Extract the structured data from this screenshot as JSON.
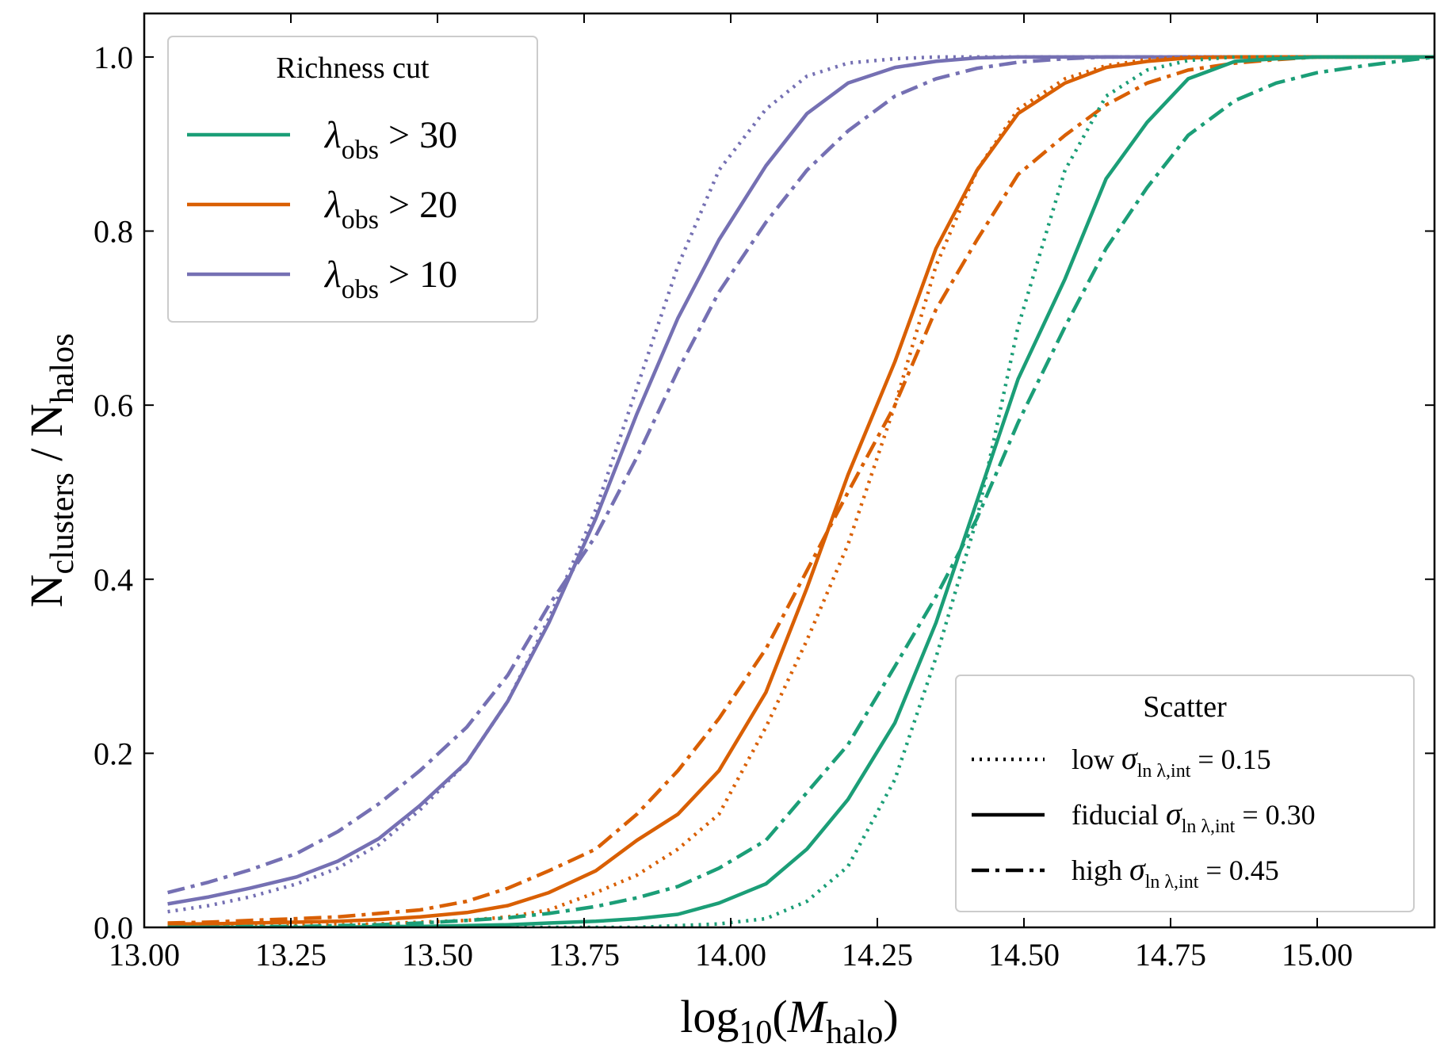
{
  "chart_data": {
    "type": "line",
    "xlabel": "log10(Mhalo)",
    "ylabel": "Nclusters / Nhalos",
    "xlim": [
      13.0,
      15.2
    ],
    "ylim": [
      0.0,
      1.05
    ],
    "x_ticks": [
      "13.00",
      "13.25",
      "13.50",
      "13.75",
      "14.00",
      "14.25",
      "14.50",
      "14.75",
      "15.00"
    ],
    "y_ticks": [
      "0.0",
      "0.2",
      "0.4",
      "0.6",
      "0.8",
      "1.0"
    ],
    "grid": false,
    "legends": {
      "richness": {
        "title": "Richness cut",
        "placement": "top-left",
        "entries": [
          {
            "key": "cut30",
            "base": "λ",
            "sub": "obs",
            "rest": " > 30",
            "color": "#1b9e77"
          },
          {
            "key": "cut20",
            "base": "λ",
            "sub": "obs",
            "rest": " > 20",
            "color": "#d95f02"
          },
          {
            "key": "cut10",
            "base": "λ",
            "sub": "obs",
            "rest": " > 10",
            "color": "#7570b3"
          }
        ]
      },
      "scatter": {
        "title": "Scatter",
        "placement": "bottom-right",
        "entries": [
          {
            "key": "low",
            "prefix": "low ",
            "base": "σ",
            "sub": "ln λ,int",
            "rest": " = 0.15",
            "dash": "dotted"
          },
          {
            "key": "fiducial",
            "prefix": "fiducial ",
            "base": "σ",
            "sub": "ln λ,int",
            "rest": " = 0.30",
            "dash": "solid"
          },
          {
            "key": "high",
            "prefix": "high ",
            "base": "σ",
            "sub": "ln λ,int",
            "rest": " = 0.45",
            "dash": "dashdot"
          }
        ]
      }
    },
    "x": [
      13.04,
      13.11,
      13.18,
      13.26,
      13.33,
      13.4,
      13.47,
      13.55,
      13.62,
      13.69,
      13.77,
      13.84,
      13.91,
      13.98,
      14.06,
      14.13,
      14.2,
      14.28,
      14.35,
      14.42,
      14.49,
      14.57,
      14.64,
      14.71,
      14.78,
      14.86,
      14.93,
      15.0,
      15.08,
      15.15,
      15.2
    ],
    "series": [
      {
        "key": "cut10-low",
        "color": "#7570b3",
        "dash": "dotted",
        "values": [
          0.018,
          0.025,
          0.035,
          0.05,
          0.068,
          0.095,
          0.135,
          0.19,
          0.26,
          0.355,
          0.48,
          0.62,
          0.76,
          0.87,
          0.94,
          0.978,
          0.993,
          0.998,
          1.0,
          1.0,
          1.0,
          1.0,
          1.0,
          1.0,
          1.0,
          1.0,
          1.0,
          1.0,
          1.0,
          1.0,
          1.0
        ]
      },
      {
        "key": "cut10-fid",
        "color": "#7570b3",
        "dash": "solid",
        "values": [
          0.027,
          0.035,
          0.045,
          0.058,
          0.076,
          0.102,
          0.14,
          0.19,
          0.26,
          0.35,
          0.47,
          0.59,
          0.7,
          0.79,
          0.875,
          0.935,
          0.97,
          0.988,
          0.995,
          0.999,
          1.0,
          1.0,
          1.0,
          1.0,
          1.0,
          1.0,
          1.0,
          1.0,
          1.0,
          1.0,
          1.0
        ]
      },
      {
        "key": "cut10-high",
        "color": "#7570b3",
        "dash": "dashdot",
        "values": [
          0.04,
          0.052,
          0.066,
          0.085,
          0.11,
          0.142,
          0.18,
          0.23,
          0.29,
          0.37,
          0.45,
          0.54,
          0.64,
          0.73,
          0.81,
          0.87,
          0.915,
          0.955,
          0.975,
          0.987,
          0.994,
          0.998,
          1.0,
          1.0,
          1.0,
          1.0,
          1.0,
          1.0,
          1.0,
          1.0,
          1.0
        ]
      },
      {
        "key": "cut20-low",
        "color": "#d95f02",
        "dash": "dotted",
        "values": [
          0.0,
          0.0,
          0.001,
          0.002,
          0.003,
          0.004,
          0.006,
          0.008,
          0.012,
          0.02,
          0.04,
          0.06,
          0.09,
          0.13,
          0.23,
          0.33,
          0.44,
          0.6,
          0.76,
          0.87,
          0.94,
          0.975,
          0.99,
          0.997,
          1.0,
          1.0,
          1.0,
          1.0,
          1.0,
          1.0,
          1.0
        ]
      },
      {
        "key": "cut20-fid",
        "color": "#d95f02",
        "dash": "solid",
        "values": [
          0.004,
          0.004,
          0.005,
          0.006,
          0.007,
          0.009,
          0.012,
          0.017,
          0.025,
          0.04,
          0.065,
          0.1,
          0.13,
          0.18,
          0.27,
          0.39,
          0.52,
          0.65,
          0.78,
          0.87,
          0.935,
          0.97,
          0.988,
          0.995,
          0.999,
          1.0,
          1.0,
          1.0,
          1.0,
          1.0,
          1.0
        ]
      },
      {
        "key": "cut20-high",
        "color": "#d95f02",
        "dash": "dashdot",
        "values": [
          0.005,
          0.006,
          0.008,
          0.01,
          0.012,
          0.016,
          0.02,
          0.03,
          0.045,
          0.065,
          0.09,
          0.13,
          0.18,
          0.24,
          0.32,
          0.41,
          0.5,
          0.6,
          0.71,
          0.79,
          0.865,
          0.91,
          0.945,
          0.97,
          0.985,
          0.993,
          0.997,
          1.0,
          1.0,
          1.0,
          1.0
        ]
      },
      {
        "key": "cut30-low",
        "color": "#1b9e77",
        "dash": "dotted",
        "values": [
          0.0,
          0.0,
          0.0,
          0.0,
          0.0,
          0.0,
          0.0,
          0.0,
          0.0,
          0.0,
          0.0,
          0.0,
          0.002,
          0.004,
          0.01,
          0.03,
          0.07,
          0.17,
          0.31,
          0.47,
          0.69,
          0.87,
          0.955,
          0.985,
          0.996,
          1.0,
          1.0,
          1.0,
          1.0,
          1.0,
          1.0
        ]
      },
      {
        "key": "cut30-fid",
        "color": "#1b9e77",
        "dash": "solid",
        "values": [
          0.0,
          0.0,
          0.0,
          0.0,
          0.0,
          0.001,
          0.001,
          0.002,
          0.003,
          0.005,
          0.007,
          0.01,
          0.015,
          0.028,
          0.05,
          0.09,
          0.147,
          0.235,
          0.35,
          0.49,
          0.63,
          0.745,
          0.86,
          0.925,
          0.975,
          0.995,
          0.998,
          1.0,
          1.0,
          1.0,
          1.0
        ]
      },
      {
        "key": "cut30-high",
        "color": "#1b9e77",
        "dash": "dashdot",
        "values": [
          0.0,
          0.0,
          0.001,
          0.001,
          0.002,
          0.003,
          0.005,
          0.008,
          0.011,
          0.016,
          0.024,
          0.034,
          0.047,
          0.068,
          0.1,
          0.155,
          0.21,
          0.3,
          0.38,
          0.47,
          0.58,
          0.69,
          0.78,
          0.85,
          0.91,
          0.95,
          0.97,
          0.982,
          0.99,
          0.996,
          1.0
        ]
      }
    ]
  }
}
